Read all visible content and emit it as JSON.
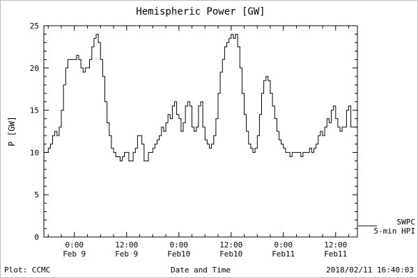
{
  "title": "Hemispheric Power [GW]",
  "footer": {
    "left": "Plot: CCMC",
    "right": "2018/02/11 16:40:03"
  },
  "legend": {
    "source": "SWPC",
    "series": "5-min HPI"
  },
  "chart_data": {
    "type": "line",
    "title": "Hemispheric Power [GW]",
    "xlabel": "Date and Time",
    "ylabel": "P [GW]",
    "ylim": [
      0,
      25
    ],
    "xlim_hours": [
      0,
      72
    ],
    "grid": false,
    "legend_position": "right-outside",
    "line_color": "#000000",
    "y_ticks": [
      0,
      5,
      10,
      15,
      20,
      25
    ],
    "x_ticks": [
      {
        "hour": 7,
        "time": "0:00",
        "date": "Feb 9"
      },
      {
        "hour": 19,
        "time": "12:00",
        "date": "Feb 9"
      },
      {
        "hour": 31,
        "time": "0:00",
        "date": "Feb10"
      },
      {
        "hour": 43,
        "time": "12:00",
        "date": "Feb10"
      },
      {
        "hour": 55,
        "time": "0:00",
        "date": "Feb11"
      },
      {
        "hour": 67,
        "time": "12:00",
        "date": "Feb11"
      }
    ],
    "series": [
      {
        "name": "SWPC 5-min HPI",
        "x_hours_start": 0,
        "x_hours_step": 0.5,
        "values": [
          10,
          10,
          10.5,
          11,
          12,
          12.5,
          12,
          13,
          15,
          18,
          20,
          21,
          21,
          21,
          21,
          21.5,
          21,
          20,
          19.5,
          20,
          20,
          21,
          22.5,
          23.5,
          24,
          23,
          21,
          19,
          16,
          13.5,
          12,
          10.5,
          10,
          9.5,
          9.5,
          9,
          9.5,
          10,
          10,
          9,
          9,
          10,
          10.5,
          12,
          12,
          11,
          9,
          9,
          10,
          10,
          10.5,
          11,
          11.5,
          12,
          13,
          12.5,
          13.5,
          14.5,
          14,
          15.5,
          16,
          14.5,
          14,
          12.5,
          13.5,
          15.5,
          16,
          15.5,
          13,
          12.5,
          13,
          15.5,
          16,
          13,
          11.5,
          11,
          10.5,
          11,
          12,
          14,
          17,
          19.5,
          21,
          22.5,
          23,
          23.5,
          24,
          23.5,
          24,
          22.5,
          20,
          17,
          14.5,
          12.5,
          11,
          10.5,
          10,
          10.5,
          12,
          14.5,
          17,
          18.5,
          19,
          18.5,
          17,
          15.5,
          14,
          12.5,
          11.5,
          11,
          10.5,
          10,
          10,
          9.5,
          10,
          10,
          10,
          10,
          9.5,
          10,
          10,
          10,
          10.5,
          10,
          10.5,
          11,
          12,
          12.5,
          12,
          13,
          14,
          13.5,
          15,
          15.5,
          14,
          13,
          12.5,
          13,
          13,
          15,
          15.5,
          13,
          13,
          13,
          13
        ]
      }
    ]
  }
}
